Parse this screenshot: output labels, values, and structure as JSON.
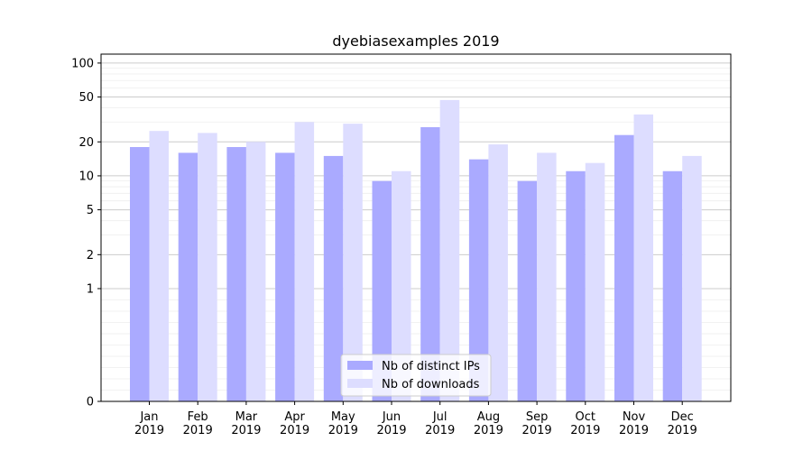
{
  "chart_data": {
    "type": "bar",
    "title": "dyebiasexamples 2019",
    "xlabel": "",
    "ylabel": "",
    "y_scale": "symlog",
    "ylim": [
      0,
      120
    ],
    "y_ticks": [
      0,
      1,
      2,
      5,
      10,
      20,
      50,
      100
    ],
    "grid": "horizontal",
    "legend_position": "lower-center",
    "categories": [
      [
        "Jan",
        "2019"
      ],
      [
        "Feb",
        "2019"
      ],
      [
        "Mar",
        "2019"
      ],
      [
        "Apr",
        "2019"
      ],
      [
        "May",
        "2019"
      ],
      [
        "Jun",
        "2019"
      ],
      [
        "Jul",
        "2019"
      ],
      [
        "Aug",
        "2019"
      ],
      [
        "Sep",
        "2019"
      ],
      [
        "Oct",
        "2019"
      ],
      [
        "Nov",
        "2019"
      ],
      [
        "Dec",
        "2019"
      ]
    ],
    "series": [
      {
        "name": "Nb of distinct IPs",
        "color": "#aaaaff",
        "values": [
          18,
          16,
          18,
          16,
          15,
          9,
          27,
          14,
          9,
          11,
          23,
          11
        ]
      },
      {
        "name": "Nb of downloads",
        "color": "#ddddff",
        "values": [
          25,
          24,
          20,
          30,
          29,
          11,
          47,
          19,
          16,
          13,
          35,
          15
        ]
      }
    ]
  }
}
